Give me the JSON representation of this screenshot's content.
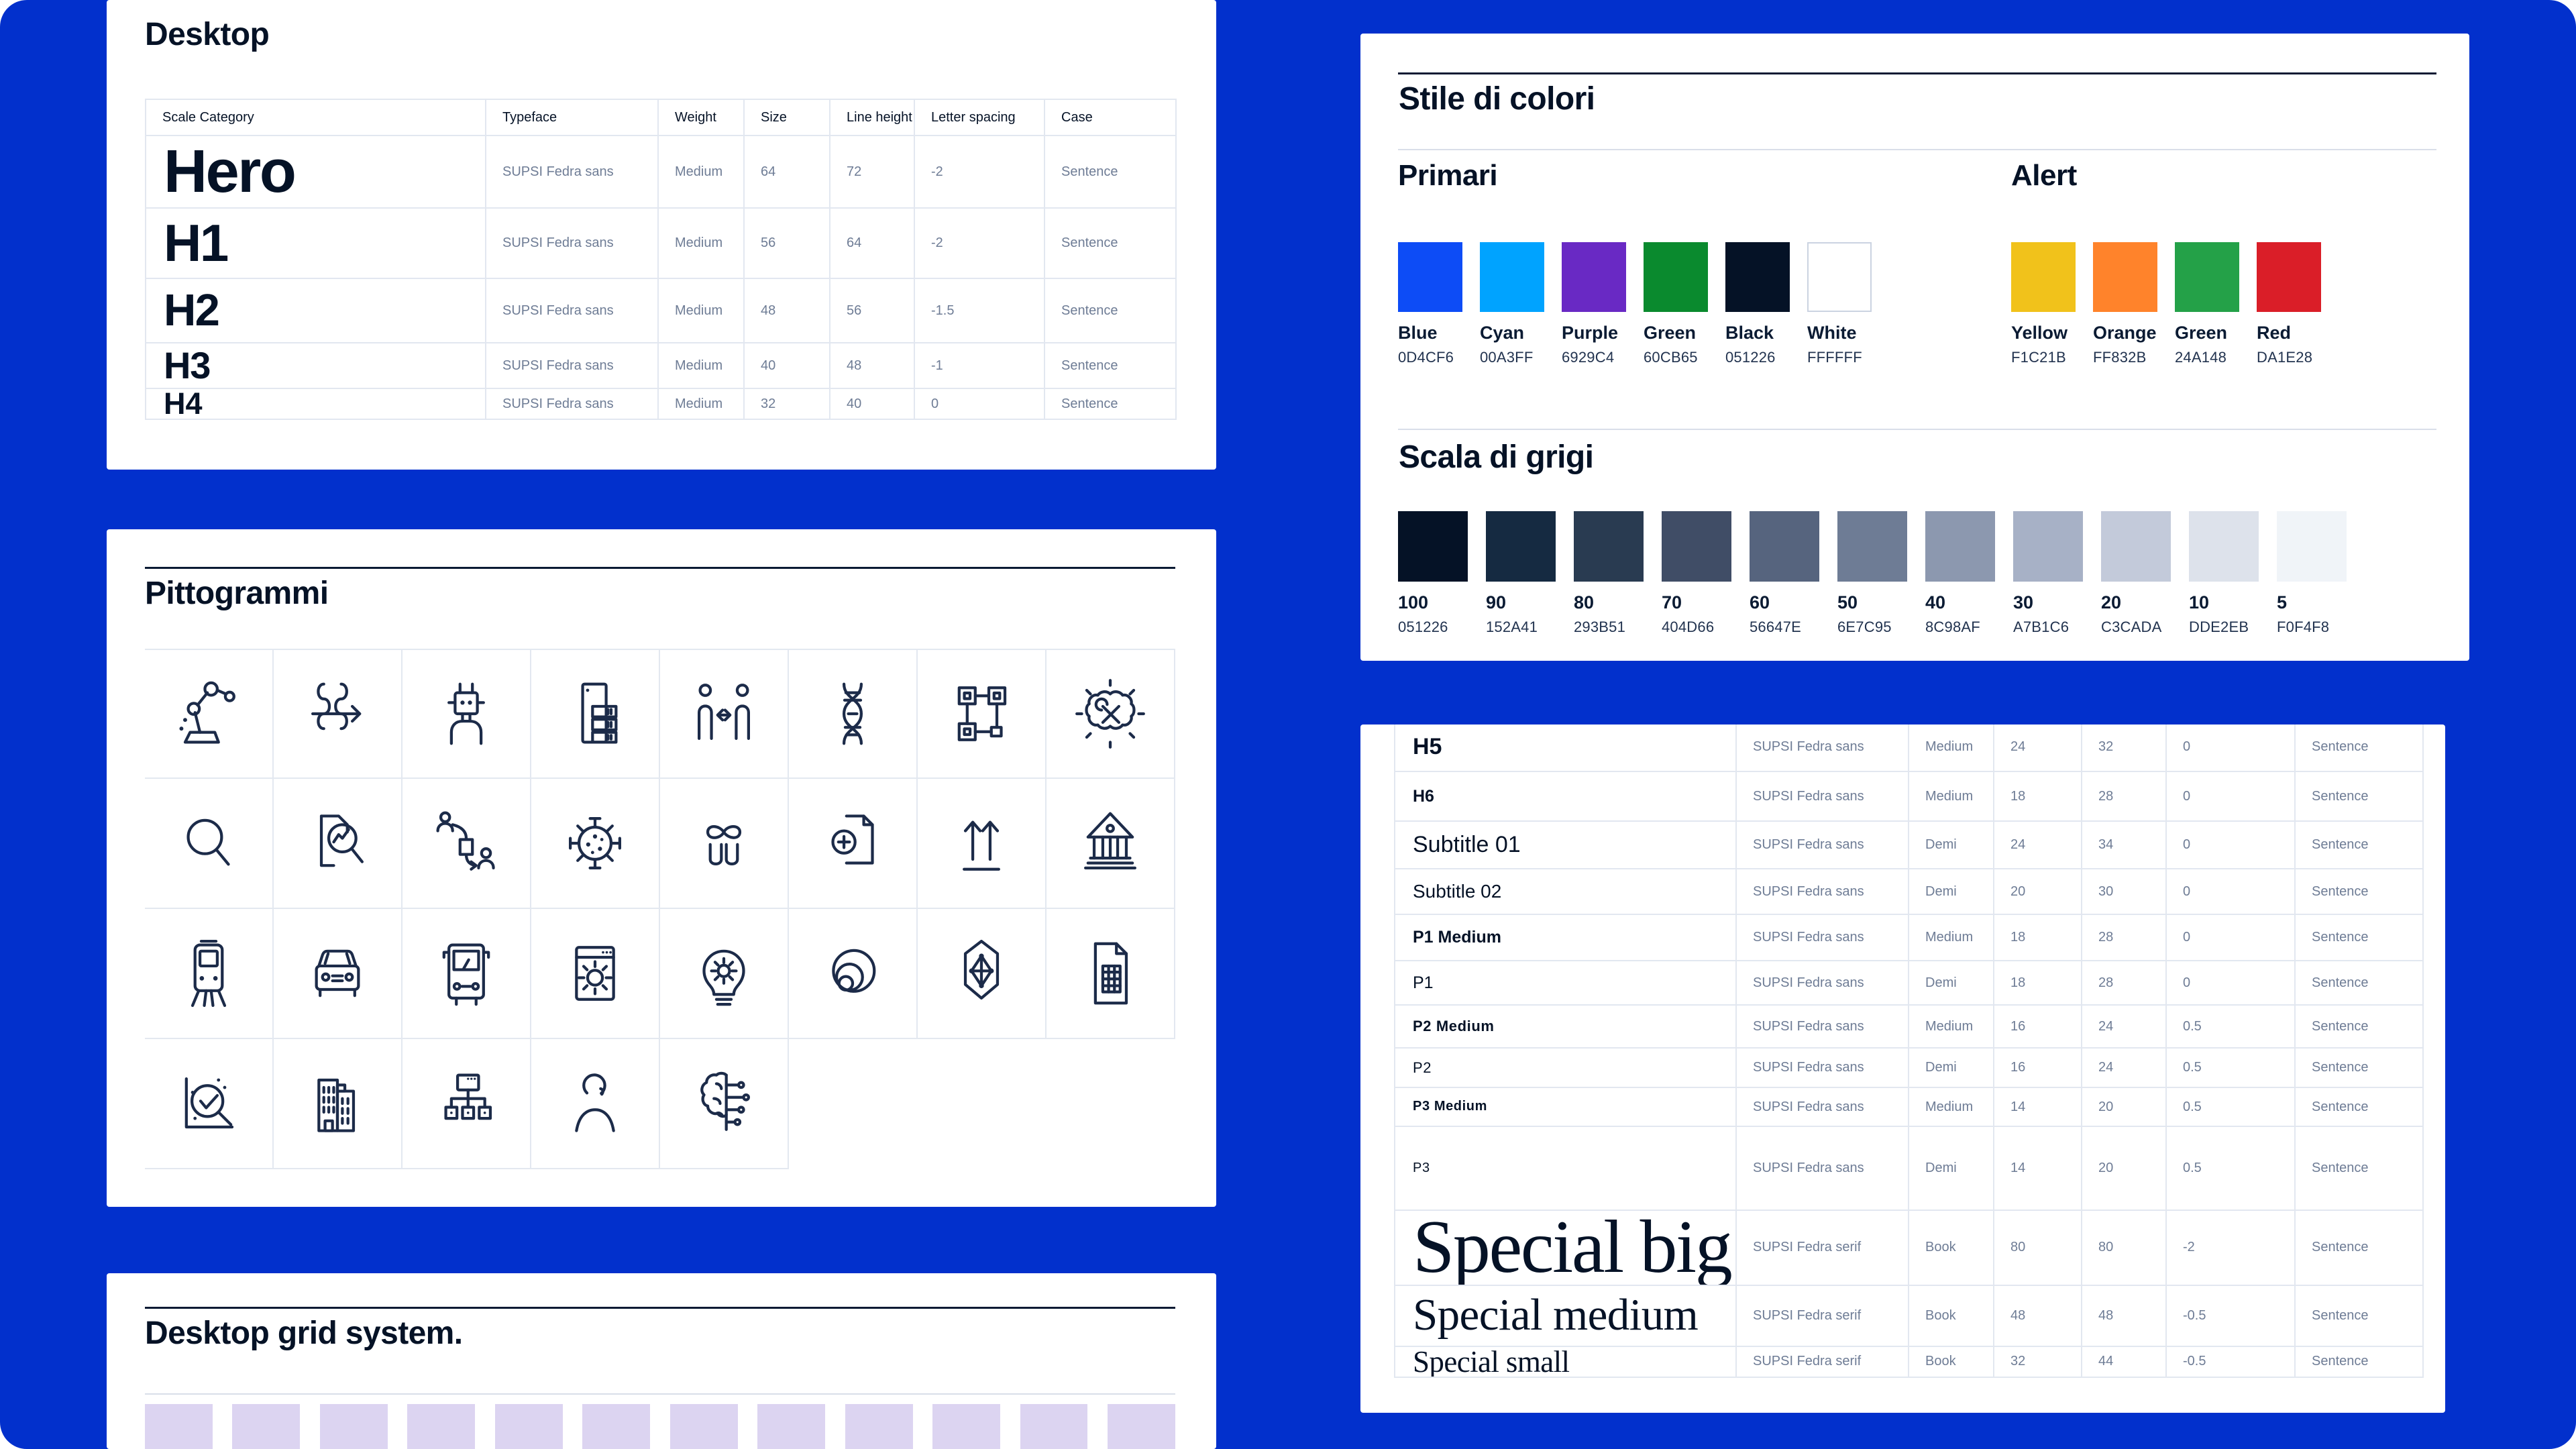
{
  "canvas": {
    "background": "#0230CC"
  },
  "typography_desktop": {
    "title": "Desktop",
    "columns": [
      "Scale Category",
      "Typeface",
      "Weight",
      "Size",
      "Line height",
      "Letter spacing",
      "Case"
    ],
    "rows": [
      {
        "name": "Hero",
        "typeface": "SUPSI Fedra sans",
        "weight": "Medium",
        "size": "64",
        "line_height": "72",
        "letter_spacing": "-2",
        "case": "Sentence"
      },
      {
        "name": "H1",
        "typeface": "SUPSI Fedra sans",
        "weight": "Medium",
        "size": "56",
        "line_height": "64",
        "letter_spacing": "-2",
        "case": "Sentence"
      },
      {
        "name": "H2",
        "typeface": "SUPSI Fedra sans",
        "weight": "Medium",
        "size": "48",
        "line_height": "56",
        "letter_spacing": "-1.5",
        "case": "Sentence"
      },
      {
        "name": "H3",
        "typeface": "SUPSI Fedra sans",
        "weight": "Medium",
        "size": "40",
        "line_height": "48",
        "letter_spacing": "-1",
        "case": "Sentence"
      },
      {
        "name": "H4",
        "typeface": "SUPSI Fedra sans",
        "weight": "Medium",
        "size": "32",
        "line_height": "40",
        "letter_spacing": "0",
        "case": "Sentence"
      }
    ]
  },
  "pictograms": {
    "title": "Pittogrammi",
    "rows": [
      [
        "robot-arm",
        "flow-arrows",
        "robot",
        "server-rack",
        "people-exchange",
        "dna",
        "connected-nodes",
        "tools-burst"
      ],
      [
        "magnifier",
        "document-analysis",
        "people-workflow",
        "virus",
        "people-infinity",
        "document-add",
        "arrows-up",
        "bank"
      ],
      [
        "tram",
        "car",
        "bus",
        "browser-settings",
        "idea-gear",
        "spiral-shell",
        "hexagon-network",
        "spreadsheet"
      ],
      [
        "chart-check",
        "buildings",
        "org-chart",
        "person",
        "brain-circuit"
      ]
    ]
  },
  "grid_system": {
    "title": "Desktop grid system.",
    "column_count": 12,
    "column_color": "#DCD4F1"
  },
  "color_styles": {
    "title": "Stile di colori",
    "primary": {
      "title": "Primari",
      "swatches": [
        {
          "name": "Blue",
          "hex": "0D4CF6"
        },
        {
          "name": "Cyan",
          "hex": "00A3FF"
        },
        {
          "name": "Purple",
          "hex": "6929C4"
        },
        {
          "name": "Green",
          "hex": "60CB65",
          "display": "#0A8A2E"
        },
        {
          "name": "Black",
          "hex": "051226"
        },
        {
          "name": "White",
          "hex": "FFFFFF"
        }
      ]
    },
    "alert": {
      "title": "Alert",
      "swatches": [
        {
          "name": "Yellow",
          "hex": "F1C21B"
        },
        {
          "name": "Orange",
          "hex": "FF832B"
        },
        {
          "name": "Green",
          "hex": "24A148"
        },
        {
          "name": "Red",
          "hex": "DA1E28"
        }
      ]
    },
    "grayscale": {
      "title": "Scala di grigi",
      "swatches": [
        {
          "name": "100",
          "hex": "051226"
        },
        {
          "name": "90",
          "hex": "152A41"
        },
        {
          "name": "80",
          "hex": "293B51"
        },
        {
          "name": "70",
          "hex": "404D66"
        },
        {
          "name": "60",
          "hex": "56647E"
        },
        {
          "name": "50",
          "hex": "6E7C95"
        },
        {
          "name": "40",
          "hex": "8C98AF"
        },
        {
          "name": "30",
          "hex": "A7B1C6"
        },
        {
          "name": "20",
          "hex": "C3CADA"
        },
        {
          "name": "10",
          "hex": "DDE2EB"
        },
        {
          "name": "5",
          "hex": "F0F4F8"
        }
      ]
    }
  },
  "typography_continued": {
    "rows": [
      {
        "name": "H5",
        "typeface": "SUPSI Fedra sans",
        "weight": "Medium",
        "size": "24",
        "line_height": "32",
        "letter_spacing": "0",
        "case": "Sentence"
      },
      {
        "name": "H6",
        "typeface": "SUPSI Fedra sans",
        "weight": "Medium",
        "size": "18",
        "line_height": "28",
        "letter_spacing": "0",
        "case": "Sentence"
      },
      {
        "name": "Subtitle 01",
        "typeface": "SUPSI Fedra sans",
        "weight": "Demi",
        "size": "24",
        "line_height": "34",
        "letter_spacing": "0",
        "case": "Sentence"
      },
      {
        "name": "Subtitle 02",
        "typeface": "SUPSI Fedra sans",
        "weight": "Demi",
        "size": "20",
        "line_height": "30",
        "letter_spacing": "0",
        "case": "Sentence"
      },
      {
        "name": "P1 Medium",
        "typeface": "SUPSI Fedra sans",
        "weight": "Medium",
        "size": "18",
        "line_height": "28",
        "letter_spacing": "0",
        "case": "Sentence"
      },
      {
        "name": "P1",
        "typeface": "SUPSI Fedra sans",
        "weight": "Demi",
        "size": "18",
        "line_height": "28",
        "letter_spacing": "0",
        "case": "Sentence"
      },
      {
        "name": "P2 Medium",
        "typeface": "SUPSI Fedra sans",
        "weight": "Medium",
        "size": "16",
        "line_height": "24",
        "letter_spacing": "0.5",
        "case": "Sentence"
      },
      {
        "name": "P2",
        "typeface": "SUPSI Fedra sans",
        "weight": "Demi",
        "size": "16",
        "line_height": "24",
        "letter_spacing": "0.5",
        "case": "Sentence"
      },
      {
        "name": "P3 Medium",
        "typeface": "SUPSI Fedra sans",
        "weight": "Medium",
        "size": "14",
        "line_height": "20",
        "letter_spacing": "0.5",
        "case": "Sentence"
      },
      {
        "name": "P3",
        "typeface": "SUPSI Fedra sans",
        "weight": "Demi",
        "size": "14",
        "line_height": "20",
        "letter_spacing": "0.5",
        "case": "Sentence"
      },
      {
        "name": "Special big",
        "typeface": "SUPSI Fedra serif",
        "weight": "Book",
        "size": "80",
        "line_height": "80",
        "letter_spacing": "-2",
        "case": "Sentence"
      },
      {
        "name": "Special medium",
        "typeface": "SUPSI Fedra serif",
        "weight": "Book",
        "size": "48",
        "line_height": "48",
        "letter_spacing": "-0.5",
        "case": "Sentence"
      },
      {
        "name": "Special small",
        "typeface": "SUPSI Fedra serif",
        "weight": "Book",
        "size": "32",
        "line_height": "44",
        "letter_spacing": "-0.5",
        "case": "Sentence"
      }
    ]
  }
}
